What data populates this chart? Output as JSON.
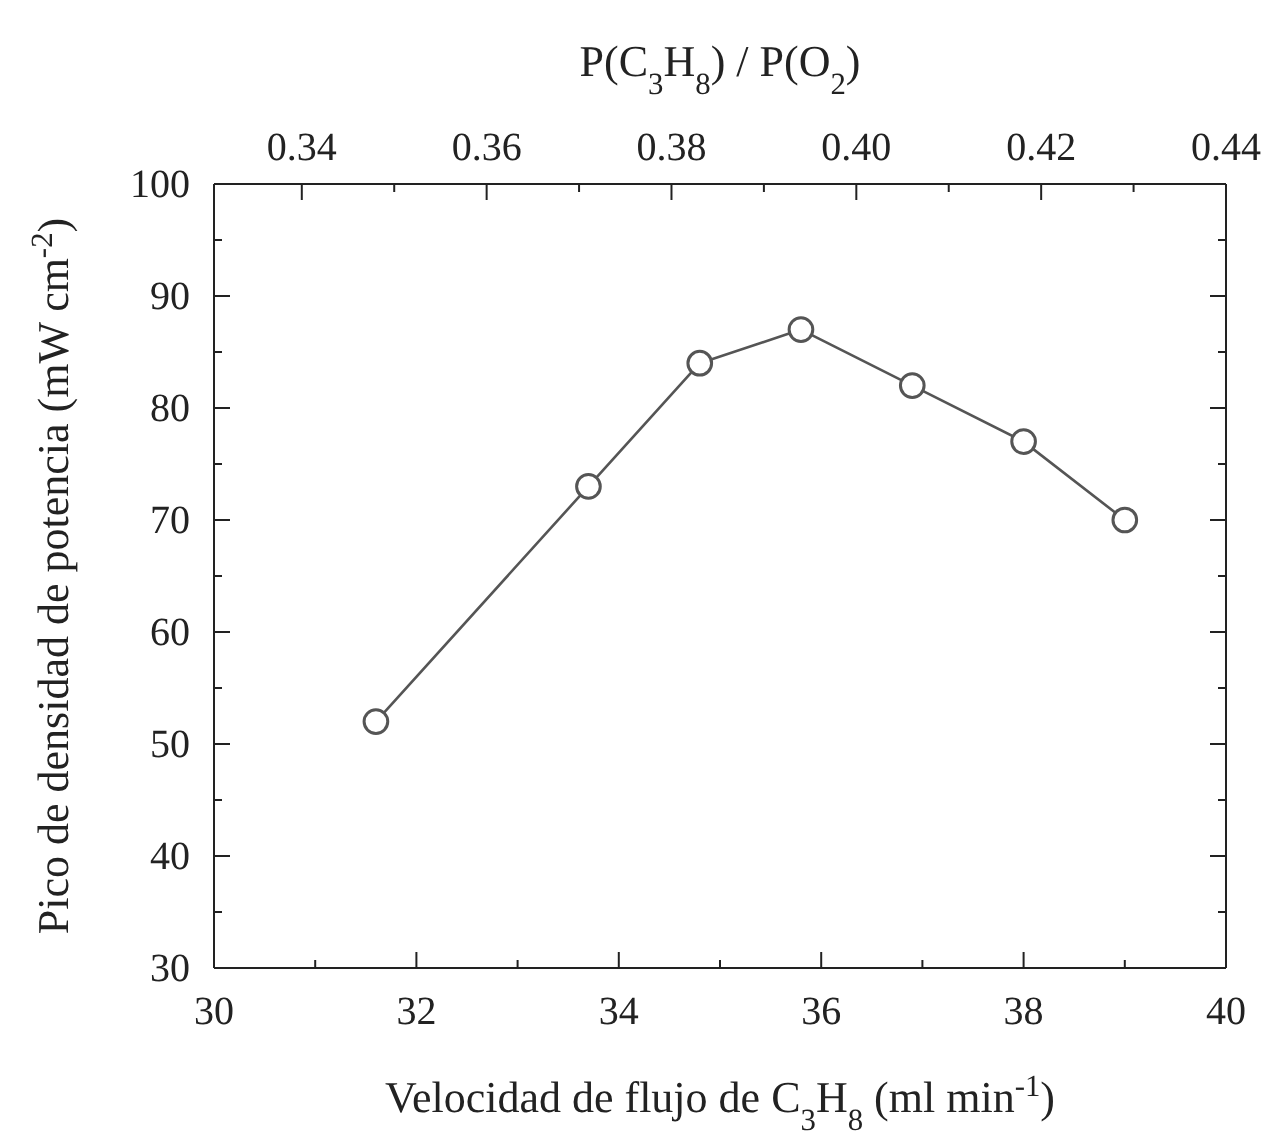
{
  "chart_data": {
    "type": "line",
    "xlabel": "Velocidad de flujo de C$_{3}$H$_{8}$ (ml min$^{-1}$)",
    "ylabel": "Pico de densidad de potencia (mW cm$^{-2}$)",
    "x2label": "P(C$_{3}$H$_{8}$) / P(O$_{2}$)",
    "x": [
      31.6,
      33.7,
      34.8,
      35.8,
      36.9,
      38.0,
      39.0
    ],
    "series": [
      {
        "color": "#555555",
        "values": [
          52,
          73,
          84,
          87,
          82,
          77,
          70
        ]
      }
    ],
    "marker": "circle",
    "line_style": "solid",
    "grid": false,
    "xlim": [
      30,
      40
    ],
    "xticks": [
      30,
      {
        "value": 31,
        "label": null
      },
      32,
      {
        "value": 33,
        "label": null
      },
      34,
      {
        "value": 35,
        "label": null
      },
      36,
      {
        "value": 37,
        "label": null
      },
      38,
      {
        "value": 39,
        "label": null
      },
      40
    ],
    "ylim": [
      30,
      100
    ],
    "yticks": [
      30,
      {
        "value": 35,
        "label": null
      },
      40,
      {
        "value": 45,
        "label": null
      },
      50,
      {
        "value": 55,
        "label": null
      },
      60,
      {
        "value": 65,
        "label": null
      },
      70,
      {
        "value": 75,
        "label": null
      },
      80,
      {
        "value": 85,
        "label": null
      },
      90,
      {
        "value": 95,
        "label": null
      },
      100
    ],
    "x2lim": [
      0.3305,
      0.44
    ],
    "x2ticks": [
      {
        "value": 0.34,
        "label": "0.34"
      },
      {
        "value": 0.35,
        "label": null
      },
      {
        "value": 0.36,
        "label": "0.36"
      },
      {
        "value": 0.37,
        "label": null
      },
      {
        "value": 0.38,
        "label": "0.38"
      },
      {
        "value": 0.39,
        "label": null
      },
      {
        "value": 0.4,
        "label": "0.40"
      },
      {
        "value": 0.41,
        "label": null
      },
      {
        "value": 0.42,
        "label": "0.42"
      },
      {
        "value": 0.43,
        "label": null
      },
      {
        "value": 0.44,
        "label": "0.44"
      }
    ]
  }
}
